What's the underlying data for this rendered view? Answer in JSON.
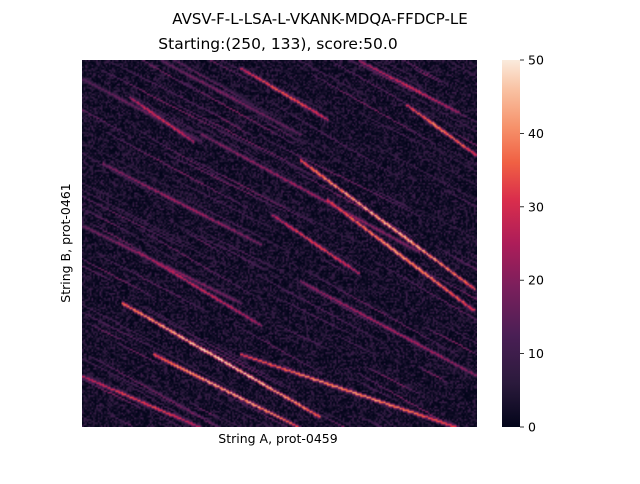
{
  "chart_data": {
    "type": "heatmap",
    "suptitle": "AVSV-F-L-LSA-L-VKANK-MDQA-FFDCP-LE",
    "title": "Starting:(250, 133), score:50.0",
    "xlabel": "String A, prot-0459",
    "ylabel": "String B, prot-0461",
    "colorbar": {
      "vmin": 0,
      "vmax": 50,
      "ticks": [
        0,
        10,
        20,
        30,
        40,
        50
      ]
    },
    "grid": false,
    "colormap": "rocket",
    "bright_diagonals": [
      {
        "start": [
          0.1,
          0.66
        ],
        "end": [
          0.6,
          0.97
        ],
        "peak": 48
      },
      {
        "start": [
          0.18,
          0.8
        ],
        "end": [
          0.55,
          1.0
        ],
        "peak": 45
      },
      {
        "start": [
          0.55,
          0.27
        ],
        "end": [
          0.99,
          0.62
        ],
        "peak": 46
      },
      {
        "start": [
          0.62,
          0.38
        ],
        "end": [
          0.99,
          0.68
        ],
        "peak": 42
      },
      {
        "start": [
          0.4,
          0.8
        ],
        "end": [
          0.95,
          1.0
        ],
        "peak": 42
      },
      {
        "start": [
          0.82,
          0.12
        ],
        "end": [
          1.0,
          0.26
        ],
        "peak": 40
      },
      {
        "start": [
          0.4,
          0.02
        ],
        "end": [
          0.62,
          0.16
        ],
        "peak": 36
      },
      {
        "start": [
          0.12,
          0.1
        ],
        "end": [
          0.28,
          0.22
        ],
        "peak": 32
      },
      {
        "start": [
          0.48,
          0.42
        ],
        "end": [
          0.7,
          0.58
        ],
        "peak": 34
      },
      {
        "start": [
          0.14,
          0.52
        ],
        "end": [
          0.45,
          0.72
        ],
        "peak": 30
      },
      {
        "start": [
          0.0,
          0.86
        ],
        "end": [
          0.3,
          1.0
        ],
        "peak": 34
      },
      {
        "start": [
          0.7,
          0.0
        ],
        "end": [
          0.95,
          0.14
        ],
        "peak": 30
      },
      {
        "start": [
          0.05,
          0.28
        ],
        "end": [
          0.45,
          0.5
        ],
        "peak": 24
      },
      {
        "start": [
          0.3,
          0.2
        ],
        "end": [
          0.85,
          0.52
        ],
        "peak": 24
      },
      {
        "start": [
          0.0,
          0.45
        ],
        "end": [
          0.4,
          0.66
        ],
        "peak": 22
      },
      {
        "start": [
          0.55,
          0.6
        ],
        "end": [
          1.0,
          0.86
        ],
        "peak": 26
      },
      {
        "start": [
          0.2,
          0.0
        ],
        "end": [
          0.55,
          0.2
        ],
        "peak": 20
      },
      {
        "start": [
          0.0,
          0.05
        ],
        "end": [
          0.3,
          0.22
        ],
        "peak": 18
      }
    ]
  }
}
